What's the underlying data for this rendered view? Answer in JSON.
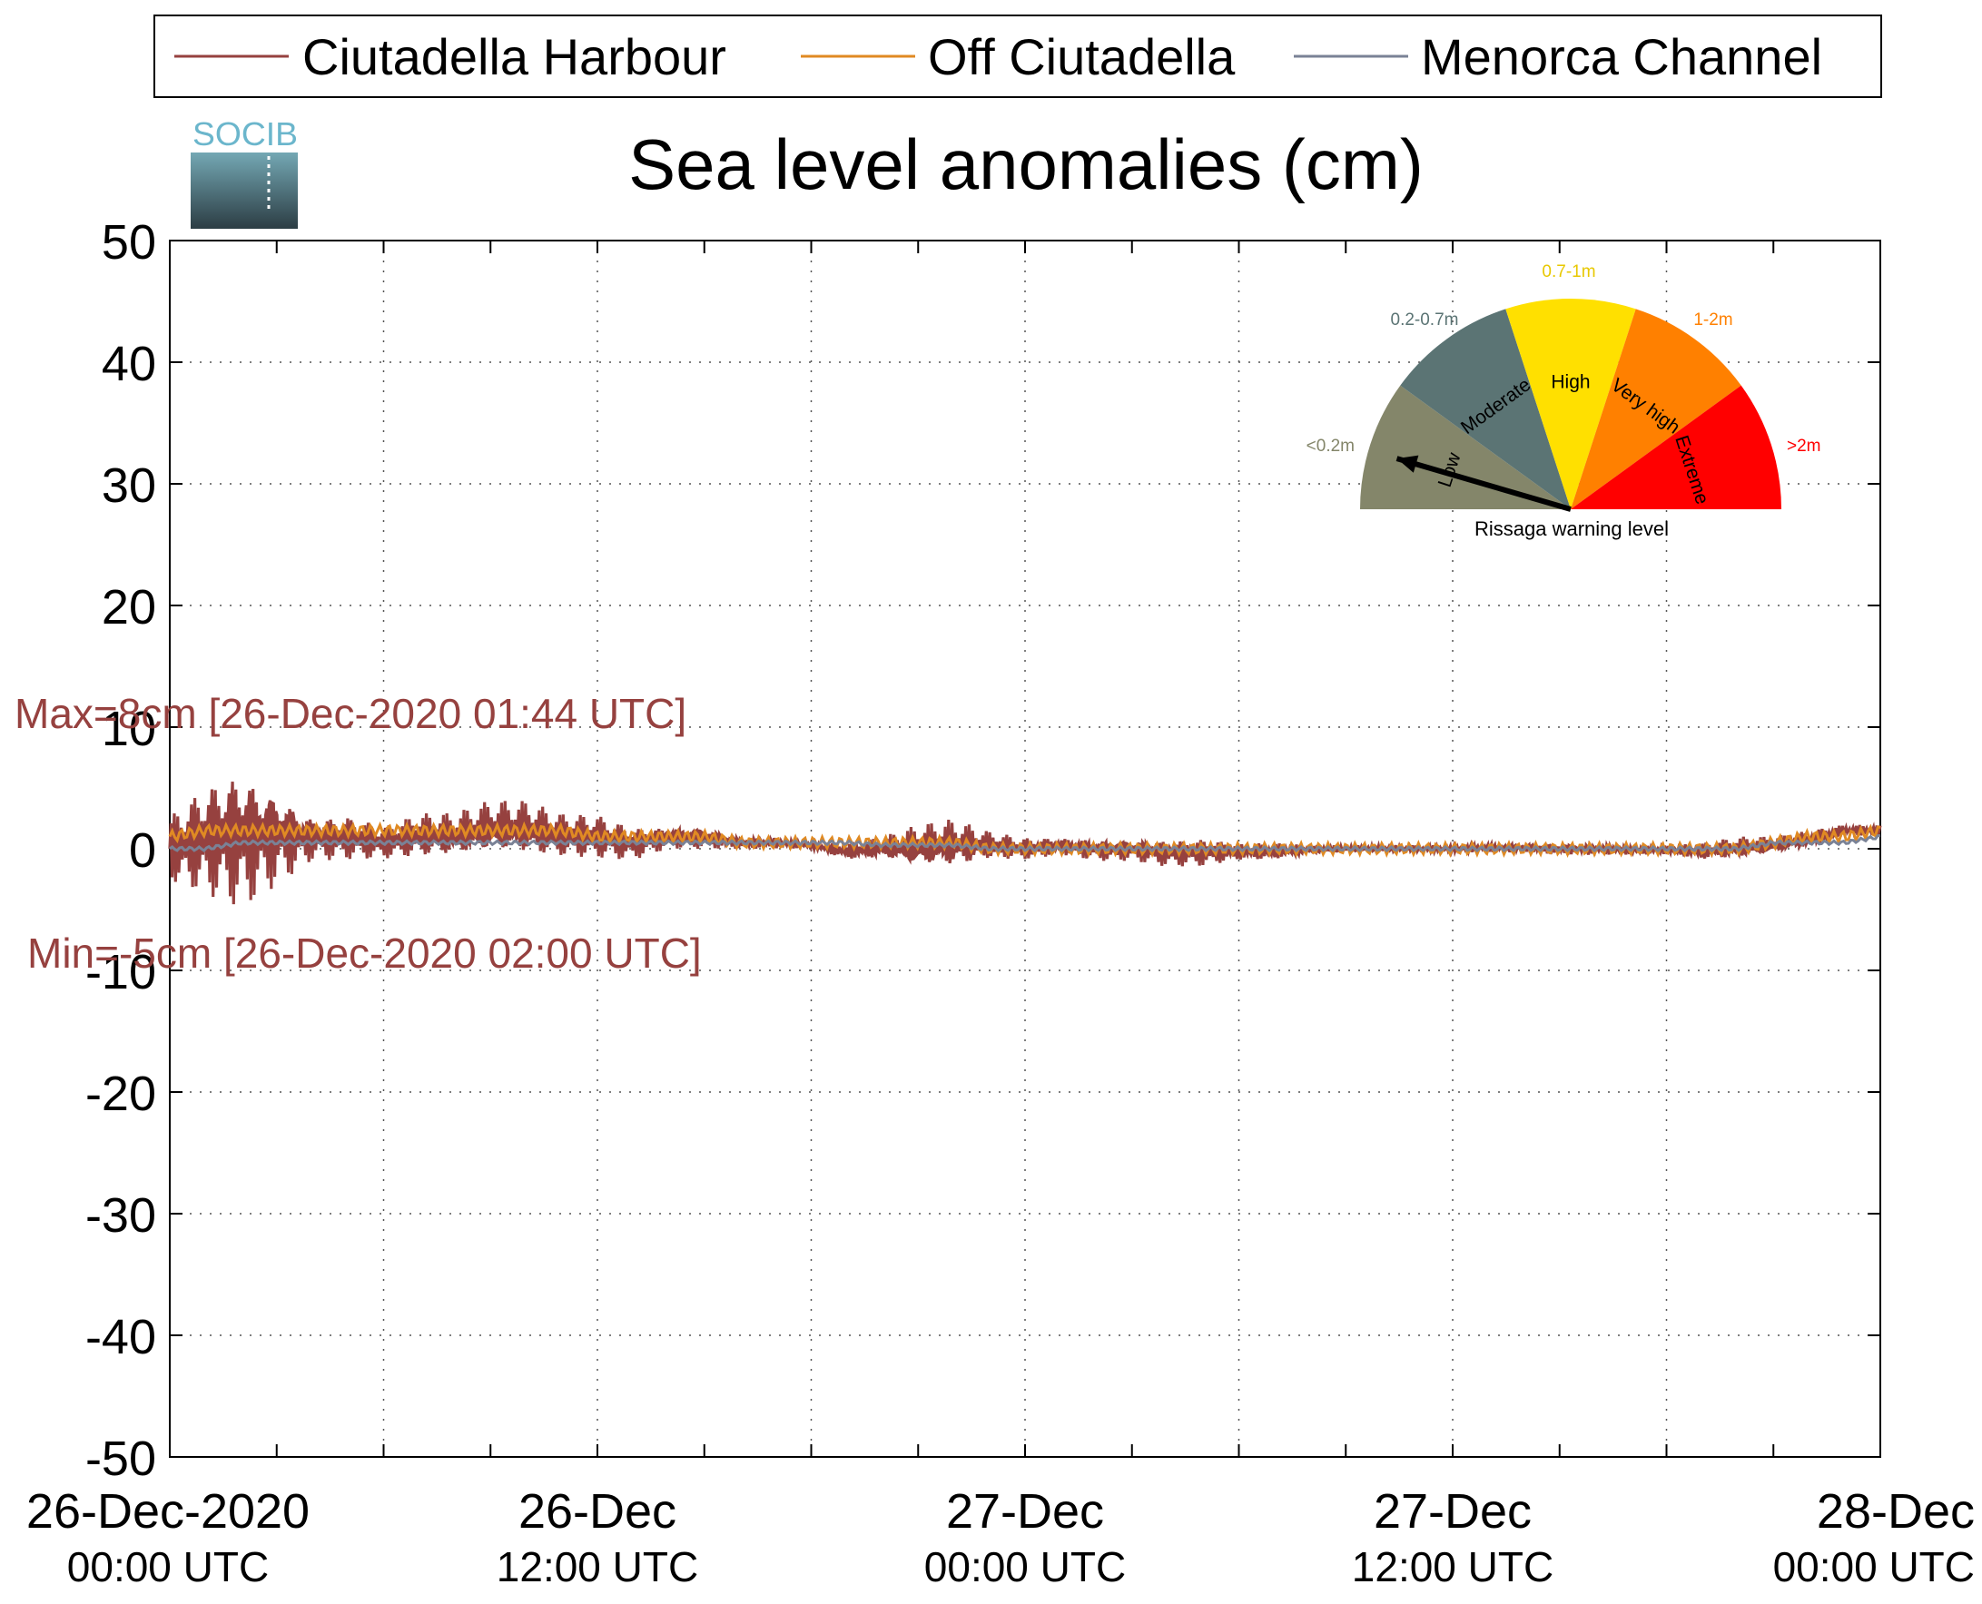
{
  "logo_text": "SOCIB",
  "colors": {
    "harbour": "#96413f",
    "off": "#e08a23",
    "channel": "#7a8296",
    "grid": "#555555",
    "gauge_low": "#84866a",
    "gauge_moderate": "#5b7474",
    "gauge_high": "#ffe000",
    "gauge_very_high": "#ff8000",
    "gauge_extreme": "#ff0000"
  },
  "chart_data": {
    "type": "line",
    "title": "Sea level anomalies (cm)",
    "xlabel": "",
    "ylabel": "",
    "ylim": [
      -50,
      50
    ],
    "yticks": [
      "50",
      "40",
      "30",
      "20",
      "10",
      "0",
      "-10",
      "-20",
      "-30",
      "-40",
      "-50"
    ],
    "xlim": [
      "2020-12-26 00:00",
      "2020-12-28 00:00"
    ],
    "xtick_labels": [
      {
        "line1": "26-Dec-2020",
        "line2": "00:00 UTC"
      },
      {
        "line1": "26-Dec",
        "line2": "12:00 UTC"
      },
      {
        "line1": "27-Dec",
        "line2": "00:00 UTC"
      },
      {
        "line1": "27-Dec",
        "line2": "12:00 UTC"
      },
      {
        "line1": "28-Dec",
        "line2": "00:00 UTC"
      }
    ],
    "grid": true,
    "legend_position": "top",
    "hours_per_point": 1,
    "series": [
      {
        "name": "Ciutadella Harbour",
        "color": "#96413f",
        "envelope_max": [
          3,
          6,
          8,
          6,
          3,
          3,
          2,
          3,
          3,
          4,
          4,
          3,
          3,
          2,
          2,
          2,
          1,
          1,
          0.5,
          0.5,
          1,
          2,
          2.5,
          1.5,
          1,
          1,
          1,
          1,
          1,
          1,
          0.5,
          0.5,
          0.3,
          0.3,
          0.3,
          0.3,
          0.3,
          0.5,
          0.5,
          0.5,
          0.5,
          0.3,
          0.3,
          0.5,
          1,
          1,
          1.5,
          2,
          2
        ],
        "envelope_min": [
          -3,
          -4,
          -5,
          -3,
          -1,
          -1,
          -1,
          -1,
          -1,
          -1,
          -1,
          -1,
          -1,
          -1,
          0,
          0,
          0,
          0,
          0,
          -1,
          -1,
          -2,
          -2,
          -1,
          -1,
          -0.5,
          -1,
          -1,
          -1.5,
          -1.5,
          -1,
          -1,
          -0.5,
          -0.3,
          -0.3,
          -0.3,
          -0.3,
          -0.3,
          -0.3,
          -0.5,
          -0.5,
          -0.5,
          -0.5,
          -1,
          -1,
          -0.5,
          0,
          1,
          1
        ]
      },
      {
        "name": "Off Ciutadella",
        "color": "#e08a23",
        "values": [
          1,
          1.5,
          1.5,
          1.5,
          1.5,
          1.5,
          1.5,
          1.5,
          1.5,
          1.5,
          1.5,
          1.5,
          1,
          1,
          1,
          1,
          0.5,
          0.5,
          0.5,
          0.5,
          0.5,
          0.5,
          0.5,
          0,
          0,
          0,
          0,
          0,
          0,
          0,
          0,
          0,
          0,
          0,
          0,
          0,
          0,
          0,
          0,
          0,
          0,
          0,
          0,
          0,
          0,
          0.5,
          1,
          1,
          1.5
        ]
      },
      {
        "name": "Menorca Channel",
        "color": "#7a8296",
        "values": [
          0,
          0,
          0.5,
          0.5,
          0.5,
          0.5,
          0.5,
          0.5,
          0.5,
          0.5,
          0.5,
          0.5,
          0.5,
          0.5,
          0.5,
          0.5,
          0.5,
          0.5,
          0.5,
          0.5,
          0.3,
          0.3,
          0.3,
          0,
          0,
          0,
          0,
          0,
          0,
          0,
          0,
          0,
          0,
          0,
          0,
          0,
          0,
          0,
          0,
          0,
          0,
          0,
          0,
          0,
          0,
          0.5,
          0.5,
          0.5,
          1
        ]
      }
    ],
    "annotations": {
      "max_text": "Max=8cm [26-Dec-2020 01:44 UTC]",
      "min_text": "Min=-5cm [26-Dec-2020 02:00 UTC]"
    }
  },
  "gauge": {
    "caption": "Rissaga warning level",
    "needle_value": "Low",
    "segments": [
      {
        "label": "Low",
        "range": "<0.2m",
        "color": "#84866a"
      },
      {
        "label": "Moderate",
        "range": "0.2-0.7m",
        "color": "#5b7474"
      },
      {
        "label": "High",
        "range": "0.7-1m",
        "color": "#ffe000"
      },
      {
        "label": "Very high",
        "range": "1-2m",
        "color": "#ff8000"
      },
      {
        "label": "Extreme",
        "range": ">2m",
        "color": "#ff0000"
      }
    ]
  }
}
